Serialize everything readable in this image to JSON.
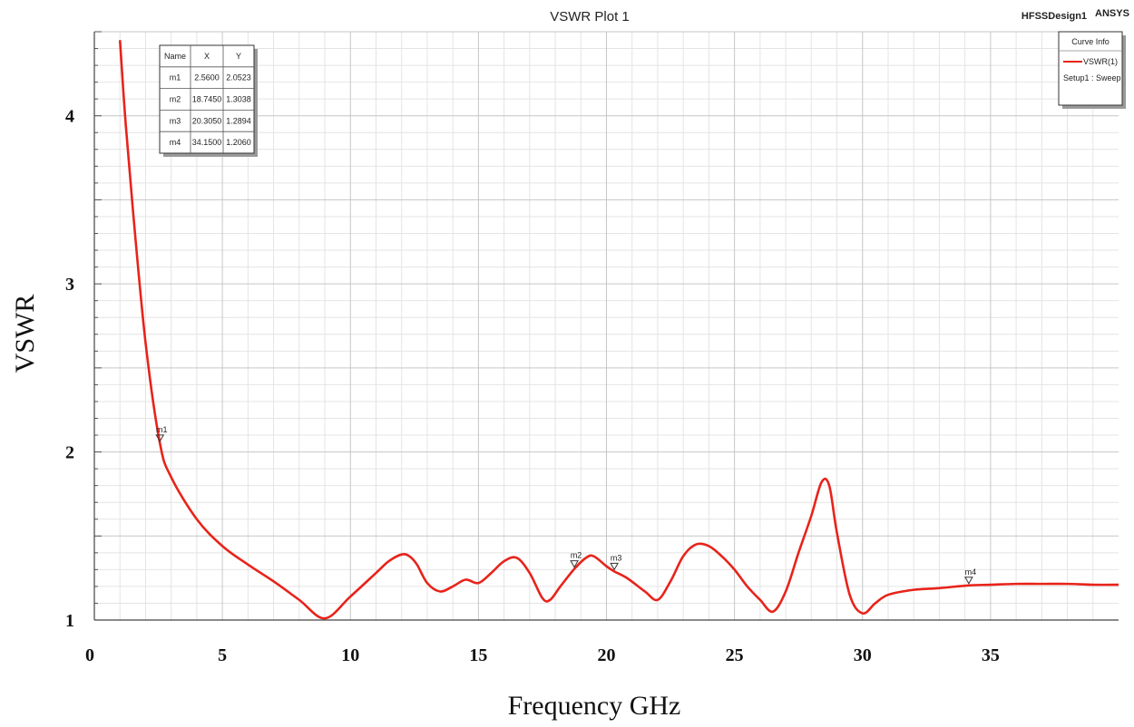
{
  "chart_data": {
    "type": "line",
    "title": "VSWR Plot 1",
    "design_name": "HFSSDesign1",
    "brand": "ANSYS",
    "xlabel": "Frequency GHz",
    "ylabel": "VSWR",
    "xlim": [
      0,
      40
    ],
    "ylim": [
      1,
      4.5
    ],
    "x_ticks": [
      "0",
      "5",
      "10",
      "15",
      "20",
      "25",
      "30",
      "35"
    ],
    "y_ticks": [
      "1",
      "2",
      "3",
      "4"
    ],
    "grid": true,
    "legend": {
      "title": "Curve Info",
      "placement": "top-right",
      "entries": [
        {
          "name": "VSWR(1)",
          "subtitle": "Setup1 : Sweep",
          "color": "#e8231a"
        }
      ]
    },
    "marker_table": {
      "placement": "top-left",
      "headers": [
        "Name",
        "X",
        "Y"
      ],
      "rows": [
        [
          "m1",
          "2.5600",
          "2.0523"
        ],
        [
          "m2",
          "18.7450",
          "1.3038"
        ],
        [
          "m3",
          "20.3050",
          "1.2894"
        ],
        [
          "m4",
          "34.1500",
          "1.2060"
        ]
      ]
    },
    "markers": [
      {
        "name": "m1",
        "x": 2.56,
        "y": 2.0523
      },
      {
        "name": "m2",
        "x": 18.745,
        "y": 1.3038
      },
      {
        "name": "m3",
        "x": 20.305,
        "y": 1.2894
      },
      {
        "name": "m4",
        "x": 34.15,
        "y": 1.206
      }
    ],
    "series": [
      {
        "name": "VSWR(1)",
        "color": "#e8231a",
        "x": [
          1.0,
          1.2,
          1.5,
          2.0,
          2.56,
          3.0,
          4.0,
          5.0,
          6.0,
          7.0,
          8.0,
          9.0,
          10.0,
          11.0,
          11.5,
          12.0,
          12.3,
          12.6,
          13.0,
          13.5,
          14.0,
          14.5,
          15.0,
          15.5,
          16.0,
          16.5,
          17.0,
          17.5,
          17.8,
          18.2,
          18.745,
          19.2,
          19.5,
          20.0,
          20.305,
          20.8,
          21.5,
          22.0,
          22.5,
          23.0,
          23.5,
          24.0,
          24.5,
          25.0,
          25.5,
          26.0,
          26.5,
          27.0,
          27.5,
          28.0,
          28.4,
          28.7,
          29.0,
          29.5,
          30.0,
          30.5,
          31.0,
          32.0,
          33.0,
          34.15,
          35.0,
          36.0,
          37.0,
          38.0,
          39.0,
          40.0
        ],
        "y": [
          4.45,
          4.0,
          3.45,
          2.65,
          2.0523,
          1.85,
          1.6,
          1.44,
          1.33,
          1.23,
          1.12,
          1.01,
          1.14,
          1.28,
          1.35,
          1.39,
          1.38,
          1.33,
          1.22,
          1.17,
          1.2,
          1.24,
          1.22,
          1.28,
          1.35,
          1.37,
          1.28,
          1.13,
          1.12,
          1.2,
          1.3038,
          1.37,
          1.38,
          1.32,
          1.2894,
          1.25,
          1.17,
          1.12,
          1.23,
          1.38,
          1.45,
          1.44,
          1.38,
          1.3,
          1.2,
          1.12,
          1.05,
          1.17,
          1.4,
          1.62,
          1.82,
          1.8,
          1.52,
          1.15,
          1.04,
          1.1,
          1.15,
          1.18,
          1.19,
          1.206,
          1.21,
          1.215,
          1.215,
          1.215,
          1.21,
          1.21
        ]
      }
    ]
  }
}
